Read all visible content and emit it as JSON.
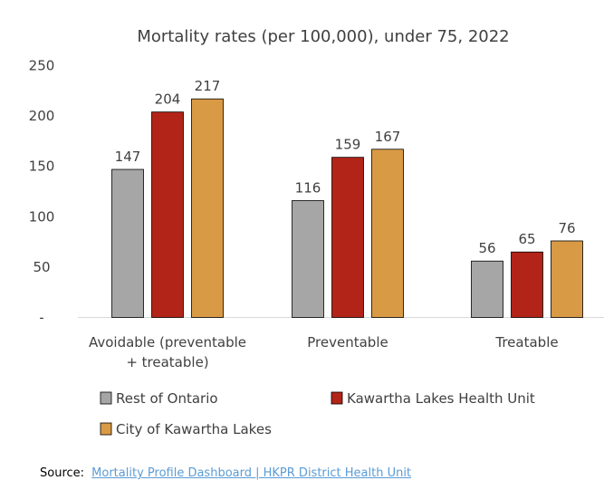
{
  "chart_data": {
    "type": "bar",
    "title": "Mortality rates (per 100,000), under 75, 2022",
    "categories": [
      [
        "Avoidable (preventable",
        "+ treatable)"
      ],
      [
        "Preventable"
      ],
      [
        "Treatable"
      ]
    ],
    "series": [
      {
        "name": "Rest of Ontario",
        "color": "#a6a6a6",
        "values": [
          147,
          116,
          56
        ]
      },
      {
        "name": "Kawartha Lakes Health Unit",
        "color": "#b22418",
        "values": [
          204,
          159,
          65
        ]
      },
      {
        "name": "City of Kawartha Lakes",
        "color": "#d99a45",
        "values": [
          217,
          167,
          76
        ]
      }
    ],
    "y_ticks": [
      "-",
      "50",
      "100",
      "150",
      "200",
      "250"
    ],
    "ylim": [
      0,
      250
    ],
    "xlabel": "",
    "ylabel": "",
    "grid": false,
    "legend_position": "bottom"
  },
  "source": {
    "label": "Source:",
    "link_text": "Mortality Profile Dashboard | HKPR District Health Unit"
  }
}
